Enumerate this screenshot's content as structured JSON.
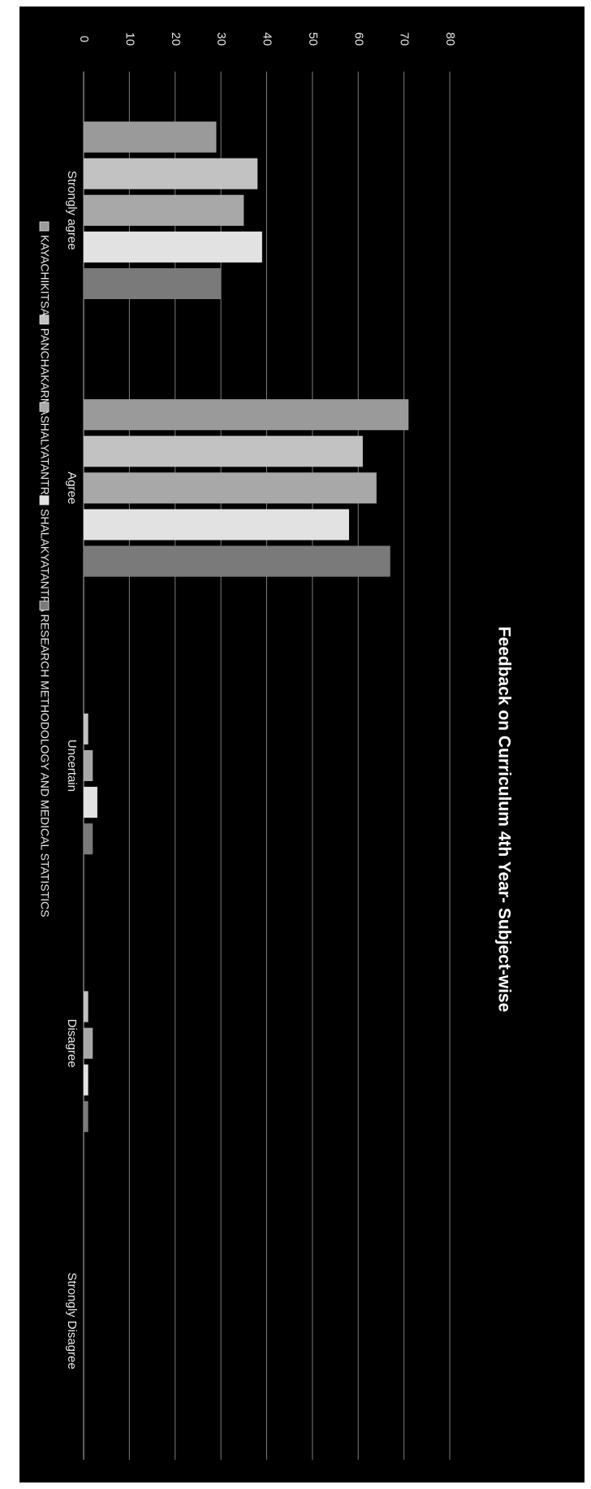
{
  "chart_data": {
    "type": "bar",
    "orientation": "horizontal",
    "title": "Feedback on Curriculum  4th Year- Subject-wise",
    "xlabel": "",
    "ylabel": "",
    "categories": [
      "Strongly agree",
      "Agree",
      "Uncertain",
      "Disagree",
      "Strongly Disagree"
    ],
    "series": [
      {
        "name": "KAYACHIKITSA",
        "values": [
          29,
          71,
          0,
          0,
          0
        ]
      },
      {
        "name": "PANCHAKARMA",
        "values": [
          38,
          61,
          1,
          1,
          0
        ]
      },
      {
        "name": "SHALYATANTRA",
        "values": [
          35,
          64,
          2,
          2,
          0
        ]
      },
      {
        "name": "SHALAKYATANTRA",
        "values": [
          39,
          58,
          3,
          1,
          0
        ]
      },
      {
        "name": "RESEARCH METHODOLOGY AND MEDICAL STATISTICS",
        "values": [
          30,
          67,
          2,
          1,
          0
        ]
      }
    ],
    "axis_ticks": [
      0,
      10,
      20,
      30,
      40,
      50,
      60,
      70,
      80
    ],
    "xlim": [
      0,
      80
    ],
    "grid": true,
    "legend_position": "bottom",
    "series_colors": [
      "#9a9a9a",
      "#c2c2c2",
      "#a8a8a8",
      "#e2e2e2",
      "#7a7a7a"
    ]
  }
}
